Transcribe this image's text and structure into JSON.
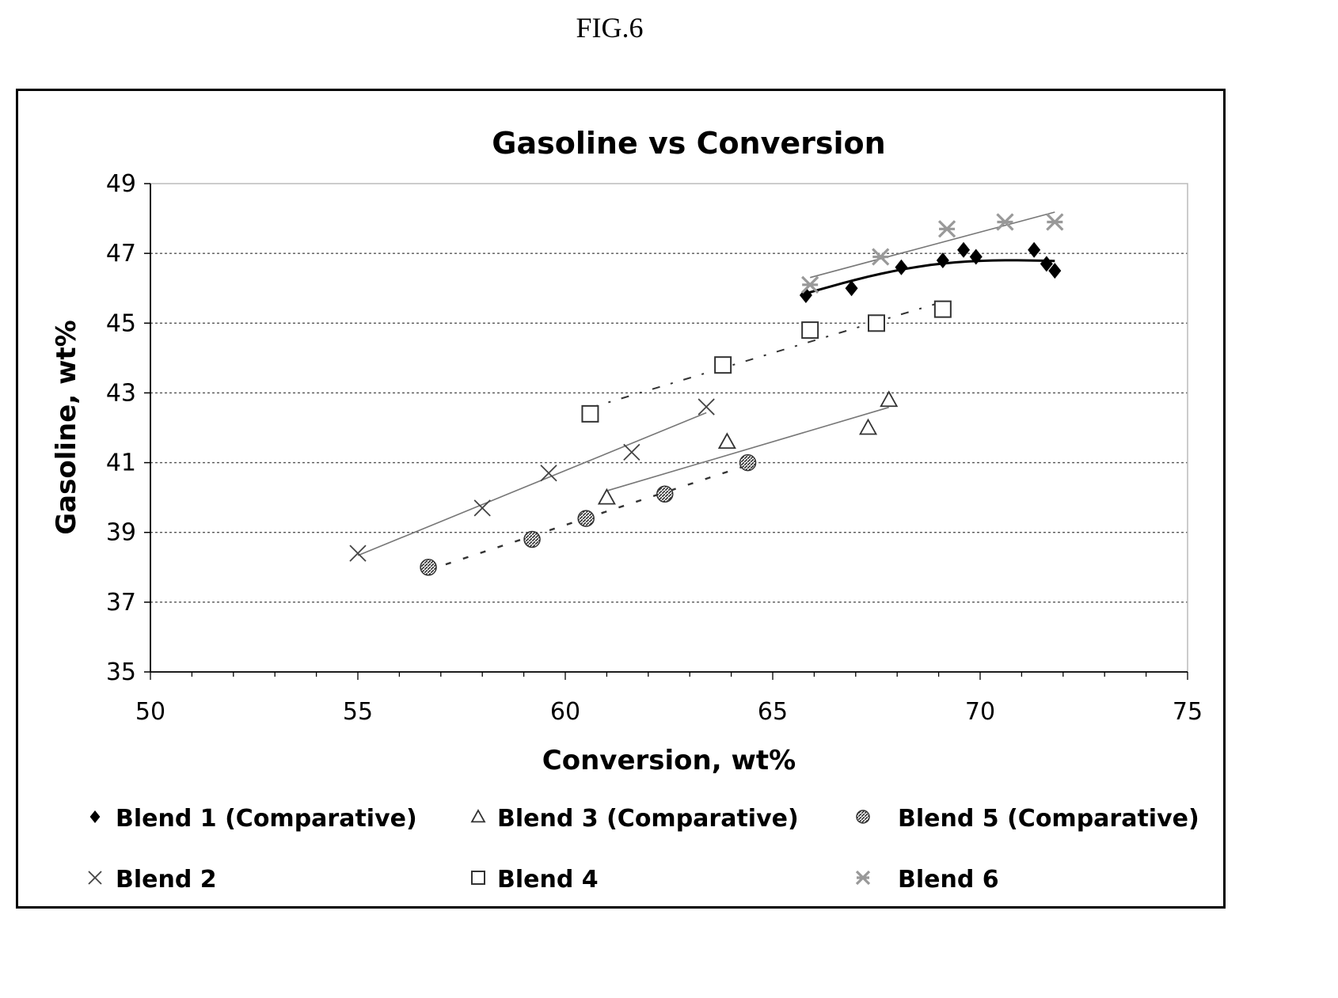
{
  "figure_label": "FIG.6",
  "chart_data": {
    "type": "scatter",
    "title": "Gasoline vs Conversion",
    "xlabel": "Conversion, wt%",
    "ylabel": "Gasoline, wt%",
    "xlim": [
      50,
      75
    ],
    "ylim": [
      35,
      49
    ],
    "xticks": [
      50,
      55,
      60,
      65,
      70,
      75
    ],
    "yticks": [
      35,
      37,
      39,
      41,
      43,
      45,
      47,
      49
    ],
    "grid": "horizontal",
    "legend_position": "bottom",
    "series": [
      {
        "name": "Blend 1 (Comparative)",
        "marker": "diamond",
        "color": "#000000",
        "trendline": "solid",
        "points": [
          [
            65.8,
            45.8
          ],
          [
            66.9,
            46.0
          ],
          [
            68.1,
            46.6
          ],
          [
            69.1,
            46.8
          ],
          [
            69.6,
            47.1
          ],
          [
            69.9,
            46.9
          ],
          [
            71.3,
            47.1
          ],
          [
            71.6,
            46.7
          ],
          [
            71.8,
            46.5
          ]
        ]
      },
      {
        "name": "Blend 2",
        "marker": "x",
        "color": "#444444",
        "trendline": "thin",
        "points": [
          [
            55.0,
            38.4
          ],
          [
            58.0,
            39.7
          ],
          [
            59.6,
            40.7
          ],
          [
            61.6,
            41.3
          ],
          [
            63.4,
            42.6
          ]
        ]
      },
      {
        "name": "Blend 3 (Comparative)",
        "marker": "triangle",
        "color": "#444444",
        "trendline": "thin",
        "points": [
          [
            61.0,
            40.0
          ],
          [
            63.9,
            41.6
          ],
          [
            67.3,
            42.0
          ],
          [
            67.8,
            42.8
          ]
        ]
      },
      {
        "name": "Blend 4",
        "marker": "square",
        "color": "#444444",
        "trendline": "dash-dot",
        "points": [
          [
            60.6,
            42.4
          ],
          [
            63.8,
            43.8
          ],
          [
            65.9,
            44.8
          ],
          [
            67.5,
            45.0
          ],
          [
            69.1,
            45.4
          ]
        ]
      },
      {
        "name": "Blend 5 (Comparative)",
        "marker": "hatched-circle",
        "color": "#555555",
        "trendline": "dashed",
        "points": [
          [
            56.7,
            38.0
          ],
          [
            59.2,
            38.8
          ],
          [
            60.5,
            39.4
          ],
          [
            62.4,
            40.1
          ],
          [
            64.4,
            41.0
          ]
        ]
      },
      {
        "name": "Blend 6",
        "marker": "hatched-x",
        "color": "#888888",
        "trendline": "thin",
        "points": [
          [
            65.9,
            46.1
          ],
          [
            67.6,
            46.9
          ],
          [
            69.2,
            47.7
          ],
          [
            70.6,
            47.9
          ],
          [
            71.8,
            47.9
          ]
        ]
      }
    ]
  }
}
